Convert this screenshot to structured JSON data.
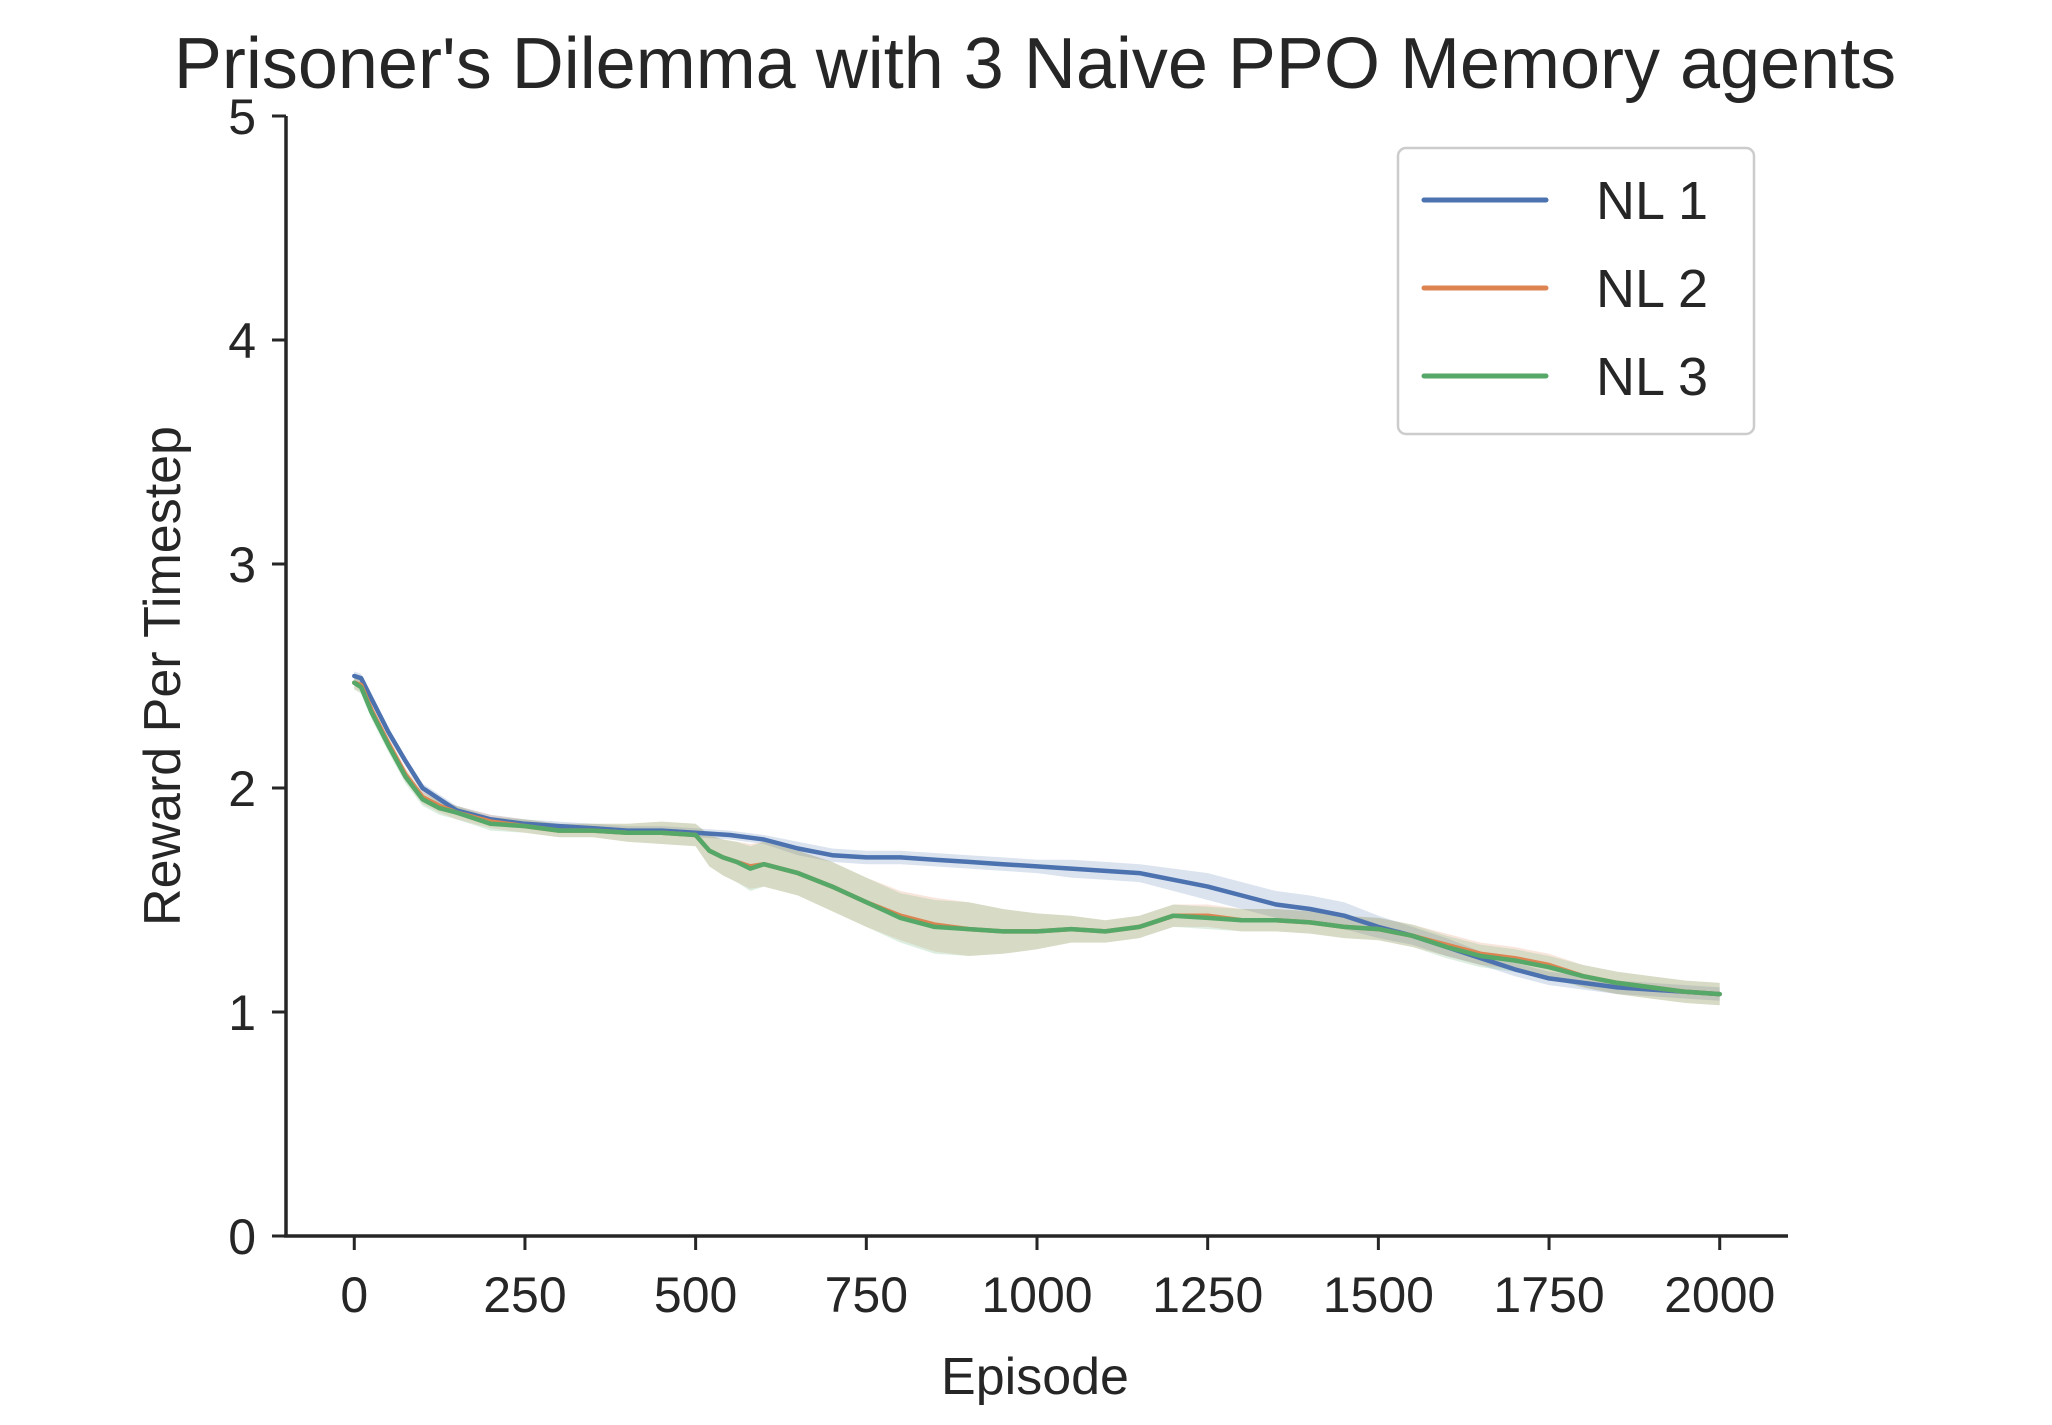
{
  "chart_data": {
    "type": "line",
    "title": "Prisoner's Dilemma with 3 Naive PPO Memory agents",
    "xlabel": "Episode",
    "ylabel": "Reward Per Timestep",
    "xlim": [
      -100,
      2100
    ],
    "ylim": [
      0,
      5
    ],
    "xticks": [
      0,
      250,
      500,
      750,
      1000,
      1250,
      1500,
      1750,
      2000
    ],
    "yticks": [
      0,
      1,
      2,
      3,
      4,
      5
    ],
    "grid": false,
    "legend_position": "top-right",
    "series": [
      {
        "name": "NL 1",
        "color": "#4c72b0",
        "x": [
          0,
          10,
          25,
          50,
          75,
          100,
          125,
          150,
          200,
          250,
          300,
          350,
          400,
          450,
          500,
          550,
          600,
          650,
          700,
          750,
          800,
          850,
          900,
          950,
          1000,
          1050,
          1100,
          1150,
          1200,
          1250,
          1300,
          1350,
          1400,
          1450,
          1500,
          1550,
          1600,
          1650,
          1700,
          1750,
          1800,
          1850,
          1900,
          1950,
          2000
        ],
        "y": [
          2.5,
          2.49,
          2.4,
          2.25,
          2.12,
          2.0,
          1.95,
          1.9,
          1.86,
          1.84,
          1.83,
          1.82,
          1.81,
          1.81,
          1.8,
          1.79,
          1.77,
          1.73,
          1.7,
          1.69,
          1.69,
          1.68,
          1.67,
          1.66,
          1.65,
          1.64,
          1.63,
          1.62,
          1.59,
          1.56,
          1.52,
          1.48,
          1.46,
          1.43,
          1.38,
          1.34,
          1.29,
          1.24,
          1.19,
          1.15,
          1.13,
          1.11,
          1.1,
          1.09,
          1.08
        ],
        "band": [
          0.02,
          0.02,
          0.02,
          0.02,
          0.02,
          0.02,
          0.02,
          0.02,
          0.02,
          0.02,
          0.02,
          0.02,
          0.02,
          0.02,
          0.02,
          0.02,
          0.02,
          0.03,
          0.03,
          0.03,
          0.03,
          0.03,
          0.03,
          0.03,
          0.03,
          0.04,
          0.04,
          0.04,
          0.05,
          0.06,
          0.06,
          0.06,
          0.06,
          0.06,
          0.05,
          0.04,
          0.04,
          0.03,
          0.03,
          0.03,
          0.03,
          0.03,
          0.03,
          0.03,
          0.03
        ]
      },
      {
        "name": "NL 2",
        "color": "#dd8452",
        "x": [
          0,
          10,
          25,
          50,
          75,
          100,
          125,
          150,
          200,
          250,
          300,
          350,
          400,
          450,
          500,
          520,
          540,
          560,
          580,
          600,
          650,
          700,
          750,
          800,
          850,
          900,
          950,
          1000,
          1050,
          1100,
          1150,
          1200,
          1250,
          1300,
          1350,
          1400,
          1450,
          1500,
          1550,
          1600,
          1650,
          1700,
          1750,
          1800,
          1850,
          1900,
          1950,
          2000
        ],
        "y": [
          2.47,
          2.46,
          2.35,
          2.2,
          2.06,
          1.96,
          1.92,
          1.89,
          1.85,
          1.83,
          1.81,
          1.81,
          1.8,
          1.8,
          1.79,
          1.72,
          1.69,
          1.67,
          1.65,
          1.66,
          1.62,
          1.56,
          1.49,
          1.43,
          1.39,
          1.37,
          1.36,
          1.36,
          1.37,
          1.36,
          1.38,
          1.43,
          1.43,
          1.41,
          1.41,
          1.4,
          1.38,
          1.37,
          1.34,
          1.3,
          1.26,
          1.24,
          1.21,
          1.16,
          1.13,
          1.11,
          1.09,
          1.08
        ],
        "band": [
          0.03,
          0.03,
          0.03,
          0.03,
          0.03,
          0.03,
          0.03,
          0.03,
          0.03,
          0.03,
          0.03,
          0.03,
          0.04,
          0.05,
          0.05,
          0.07,
          0.08,
          0.09,
          0.1,
          0.1,
          0.1,
          0.11,
          0.11,
          0.11,
          0.12,
          0.12,
          0.1,
          0.08,
          0.06,
          0.05,
          0.05,
          0.05,
          0.05,
          0.05,
          0.05,
          0.05,
          0.05,
          0.05,
          0.05,
          0.05,
          0.05,
          0.05,
          0.05,
          0.05,
          0.05,
          0.05,
          0.05,
          0.05
        ]
      },
      {
        "name": "NL 3",
        "color": "#55a868",
        "x": [
          0,
          10,
          25,
          50,
          75,
          100,
          125,
          150,
          200,
          250,
          300,
          350,
          400,
          450,
          500,
          520,
          540,
          560,
          580,
          600,
          650,
          700,
          750,
          800,
          850,
          900,
          950,
          1000,
          1050,
          1100,
          1150,
          1200,
          1250,
          1300,
          1350,
          1400,
          1450,
          1500,
          1550,
          1600,
          1650,
          1700,
          1750,
          1800,
          1850,
          1900,
          1950,
          2000
        ],
        "y": [
          2.47,
          2.45,
          2.34,
          2.19,
          2.05,
          1.95,
          1.91,
          1.89,
          1.84,
          1.83,
          1.81,
          1.81,
          1.8,
          1.8,
          1.79,
          1.72,
          1.69,
          1.67,
          1.64,
          1.66,
          1.62,
          1.56,
          1.49,
          1.42,
          1.38,
          1.37,
          1.36,
          1.36,
          1.37,
          1.36,
          1.38,
          1.43,
          1.42,
          1.41,
          1.41,
          1.4,
          1.38,
          1.37,
          1.34,
          1.29,
          1.25,
          1.23,
          1.2,
          1.16,
          1.13,
          1.11,
          1.09,
          1.08
        ],
        "band": [
          0.03,
          0.03,
          0.03,
          0.03,
          0.03,
          0.03,
          0.03,
          0.03,
          0.03,
          0.03,
          0.03,
          0.03,
          0.04,
          0.05,
          0.05,
          0.07,
          0.08,
          0.09,
          0.1,
          0.1,
          0.1,
          0.11,
          0.11,
          0.11,
          0.12,
          0.12,
          0.1,
          0.08,
          0.06,
          0.05,
          0.05,
          0.05,
          0.05,
          0.05,
          0.05,
          0.05,
          0.05,
          0.05,
          0.05,
          0.05,
          0.05,
          0.05,
          0.05,
          0.05,
          0.05,
          0.05,
          0.05,
          0.05
        ]
      }
    ]
  }
}
